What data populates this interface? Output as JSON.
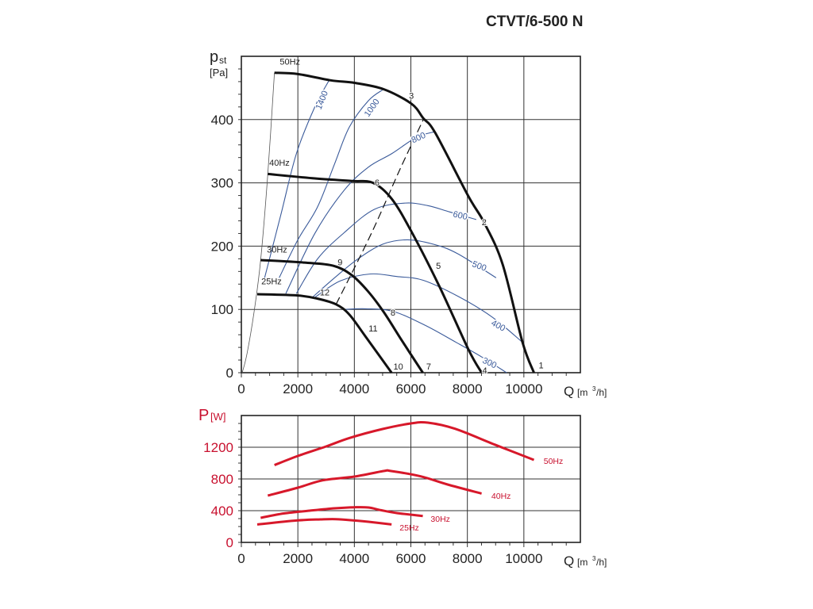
{
  "title": "CTVT/6-500 N",
  "chart_data": [
    {
      "type": "line",
      "name": "pressure-chart",
      "ylabel_main": "p",
      "ylabel_sub": "st",
      "ylabel_unit": "[Pa]",
      "xlabel_main": "Q",
      "xlabel_unit_pre": "[m",
      "xlabel_unit_sup": "3",
      "xlabel_unit_post": "/h]",
      "xlim": [
        0,
        12000
      ],
      "ylim": [
        0,
        500
      ],
      "xticks": [
        "0",
        "2000",
        "4000",
        "6000",
        "8000",
        "10000"
      ],
      "yticks": [
        "0",
        "100",
        "200",
        "300",
        "400"
      ],
      "grid": true,
      "colors": {
        "fan": "#111111",
        "iso": "#3a5a9a",
        "limit": "#555555"
      },
      "series": [
        {
          "name": "50Hz",
          "points": [
            [
              1171,
              474
            ],
            [
              2000,
              472
            ],
            [
              3165,
              462
            ],
            [
              4008,
              458
            ],
            [
              5037,
              448
            ],
            [
              6020,
              425
            ],
            [
              6441,
              402
            ],
            [
              6863,
              379
            ],
            [
              8034,
              279
            ],
            [
              8596,
              237
            ],
            [
              9250,
              171
            ],
            [
              9952,
              48
            ],
            [
              10356,
              0
            ]
          ]
        },
        {
          "name": "40Hz",
          "points": [
            [
              936,
              314
            ],
            [
              2604,
              307
            ],
            [
              3914,
              303
            ],
            [
              4663,
              300
            ],
            [
              5317,
              275
            ],
            [
              6020,
              223
            ],
            [
              7003,
              137
            ],
            [
              8034,
              37
            ],
            [
              8503,
              0
            ]
          ]
        },
        {
          "name": "30Hz",
          "points": [
            [
              683,
              178
            ],
            [
              2228,
              174
            ],
            [
              3258,
              169
            ],
            [
              3913,
              154
            ],
            [
              4475,
              129
            ],
            [
              5037,
              96
            ],
            [
              5693,
              50
            ],
            [
              6423,
              0
            ]
          ]
        },
        {
          "name": "25Hz",
          "points": [
            [
              562,
              124
            ],
            [
              1994,
              122
            ],
            [
              2697,
              117
            ],
            [
              3352,
              108
            ],
            [
              3820,
              92
            ],
            [
              4382,
              58
            ],
            [
              5317,
              0
            ]
          ]
        }
      ],
      "series_labels": [
        {
          "text": "50Hz",
          "at": [
            1720,
            487
          ]
        },
        {
          "text": "40Hz",
          "at": [
            1348,
            327
          ]
        },
        {
          "text": "30Hz",
          "at": [
            1264,
            190
          ]
        },
        {
          "text": "25Hz",
          "at": [
            1067,
            140
          ]
        }
      ],
      "limit_curve": [
        [
          30,
          0
        ],
        [
          200,
          30
        ],
        [
          450,
          96
        ],
        [
          683,
          178
        ],
        [
          936,
          314
        ],
        [
          1171,
          474
        ]
      ],
      "dashed_curve": [
        [
          3352,
          108
        ],
        [
          4600,
          220
        ],
        [
          5600,
          320
        ],
        [
          6441,
          400
        ]
      ],
      "iso_lines": [
        {
          "label": "1400",
          "points": [
            [
              824,
              150
            ],
            [
              1400,
              250
            ],
            [
              1947,
              346
            ],
            [
              2600,
              420
            ],
            [
              3118,
              463
            ]
          ],
          "label_at": [
            2837,
            431
          ]
        },
        {
          "label": "1000",
          "points": [
            [
              1339,
              150
            ],
            [
              2000,
              210
            ],
            [
              2697,
              262
            ],
            [
              3300,
              330
            ],
            [
              3820,
              388
            ],
            [
              4500,
              430
            ],
            [
              5037,
              448
            ]
          ],
          "label_at": [
            4607,
            419
          ]
        },
        {
          "label": "800",
          "points": [
            [
              1573,
              125
            ],
            [
              2600,
              220
            ],
            [
              3633,
              288
            ],
            [
              4500,
              325
            ],
            [
              5317,
              346
            ],
            [
              6200,
              372
            ],
            [
              6863,
              381
            ]
          ],
          "label_at": [
            6264,
            372
          ]
        },
        {
          "label": "600",
          "points": [
            [
              1947,
              125
            ],
            [
              2700,
              180
            ],
            [
              3633,
              221
            ],
            [
              4700,
              258
            ],
            [
              5787,
              268
            ],
            [
              6600,
              264
            ],
            [
              7378,
              254
            ],
            [
              8315,
              242
            ]
          ],
          "label_at": [
            7753,
            249
          ]
        },
        {
          "label": "500",
          "points": [
            [
              2511,
              119
            ],
            [
              3300,
              150
            ],
            [
              4101,
              179
            ],
            [
              5000,
              203
            ],
            [
              5880,
              210
            ],
            [
              6800,
              203
            ],
            [
              7659,
              188
            ],
            [
              9017,
              150
            ]
          ],
          "label_at": [
            8427,
            169
          ]
        },
        {
          "label": "400",
          "points": [
            [
              2604,
              119
            ],
            [
              3500,
              145
            ],
            [
              4569,
              156
            ],
            [
              5500,
              152
            ],
            [
              6441,
              146
            ],
            [
              7700,
              120
            ],
            [
              8876,
              88
            ],
            [
              9952,
              48
            ]
          ],
          "label_at": [
            9101,
            75
          ]
        },
        {
          "label": "300",
          "points": [
            [
              3633,
              100
            ],
            [
              4400,
              101
            ],
            [
              5365,
              97
            ],
            [
              6500,
              75
            ],
            [
              7600,
              48
            ],
            [
              8503,
              25
            ],
            [
              9391,
              0
            ]
          ],
          "label_at": [
            8792,
            16
          ]
        }
      ],
      "point_labels": [
        {
          "text": "1",
          "at": [
            10610,
            12
          ]
        },
        {
          "text": "2",
          "at": [
            8596,
            238
          ]
        },
        {
          "text": "3",
          "at": [
            6020,
            438
          ]
        },
        {
          "text": "4",
          "at": [
            8615,
            4
          ]
        },
        {
          "text": "5",
          "at": [
            6975,
            169
          ]
        },
        {
          "text": "6",
          "at": [
            4803,
            301
          ]
        },
        {
          "text": "7",
          "at": [
            6629,
            10
          ]
        },
        {
          "text": "8",
          "at": [
            5365,
            95
          ]
        },
        {
          "text": "9",
          "at": [
            3492,
            175
          ]
        },
        {
          "text": "10",
          "at": [
            5553,
            10
          ]
        },
        {
          "text": "11",
          "at": [
            4663,
            70
          ]
        },
        {
          "text": "12",
          "at": [
            2950,
            127
          ]
        }
      ]
    },
    {
      "type": "line",
      "name": "power-chart",
      "ylabel_main": "P",
      "ylabel_unit": "[W]",
      "xlabel_main": "Q",
      "xlabel_unit_pre": "[m",
      "xlabel_unit_sup": "3",
      "xlabel_unit_post": "/h]",
      "xlim": [
        0,
        12000
      ],
      "ylim": [
        0,
        1600
      ],
      "xticks": [
        "0",
        "2000",
        "4000",
        "6000",
        "8000",
        "10000"
      ],
      "yticks": [
        "0",
        "400",
        "800",
        "1200"
      ],
      "grid": true,
      "colors": {
        "line": "#d7182a",
        "label": "#c8102e"
      },
      "series": [
        {
          "name": "50Hz",
          "points": [
            [
              1171,
              975
            ],
            [
              2000,
              1090
            ],
            [
              3000,
              1210
            ],
            [
              3820,
              1316
            ],
            [
              5000,
              1430
            ],
            [
              6000,
              1500
            ],
            [
              6600,
              1510
            ],
            [
              7565,
              1433
            ],
            [
              8969,
              1233
            ],
            [
              10356,
              1040
            ]
          ]
        },
        {
          "name": "40Hz",
          "points": [
            [
              936,
              590
            ],
            [
              2000,
              690
            ],
            [
              2885,
              783
            ],
            [
              4000,
              830
            ],
            [
              5037,
              900
            ],
            [
              5300,
              900
            ],
            [
              6348,
              833
            ],
            [
              7300,
              730
            ],
            [
              8503,
              616
            ]
          ]
        },
        {
          "name": "30Hz",
          "points": [
            [
              683,
              310
            ],
            [
              1500,
              365
            ],
            [
              2416,
              400
            ],
            [
              3300,
              430
            ],
            [
              4008,
              443
            ],
            [
              4500,
              440
            ],
            [
              4944,
              406
            ],
            [
              5500,
              370
            ],
            [
              6423,
              333
            ]
          ]
        },
        {
          "name": "25Hz",
          "points": [
            [
              562,
              226
            ],
            [
              1947,
              276
            ],
            [
              2800,
              290
            ],
            [
              3352,
              293
            ],
            [
              4008,
              276
            ],
            [
              4500,
              260
            ],
            [
              5317,
              226
            ]
          ]
        }
      ],
      "series_labels": [
        {
          "text": "50Hz",
          "at": [
            10700,
            1030
          ]
        },
        {
          "text": "40Hz",
          "at": [
            8850,
            590
          ]
        },
        {
          "text": "30Hz",
          "at": [
            6700,
            300
          ]
        },
        {
          "text": "25Hz",
          "at": [
            5600,
            190
          ]
        }
      ]
    }
  ]
}
